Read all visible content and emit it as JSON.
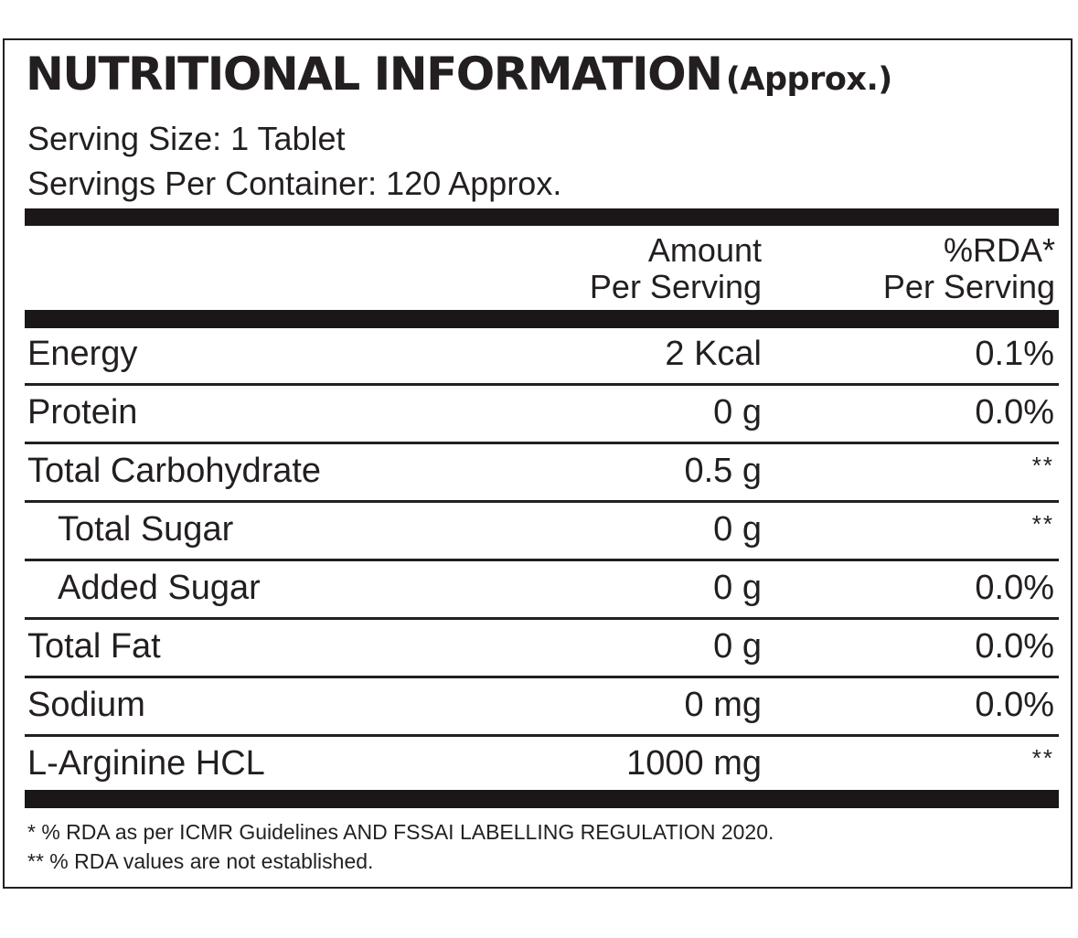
{
  "header": {
    "title": "NUTRITIONAL INFORMATION",
    "title_suffix": "(Approx.)",
    "serving_size": "Serving Size: 1 Tablet",
    "servings_per_container": "Servings Per Container: 120 Approx."
  },
  "columns": {
    "amount_line1": "Amount",
    "amount_line2": "Per Serving",
    "rda_line1": "%RDA*",
    "rda_line2": "Per Serving"
  },
  "rows": [
    {
      "name": "Energy",
      "amount": "2 Kcal",
      "rda": "0.1%"
    },
    {
      "name": "Protein",
      "amount": "0 g",
      "rda": "0.0%"
    },
    {
      "name": "Total Carbohydrate",
      "amount": "0.5 g",
      "rda": "**"
    },
    {
      "name": "Total Sugar",
      "amount": "0 g",
      "rda": "**"
    },
    {
      "name": "Added Sugar",
      "amount": "0 g",
      "rda": "0.0%"
    },
    {
      "name": "Total Fat",
      "amount": "0 g",
      "rda": "0.0%"
    },
    {
      "name": "Sodium",
      "amount": "0 mg",
      "rda": "0.0%"
    },
    {
      "name": "L-Arginine HCL",
      "amount": "1000 mg",
      "rda": "**"
    }
  ],
  "footnotes": {
    "note1": "* % RDA as per ICMR Guidelines AND FSSAI LABELLING REGULATION 2020.",
    "note2": "** % RDA values are not established."
  }
}
